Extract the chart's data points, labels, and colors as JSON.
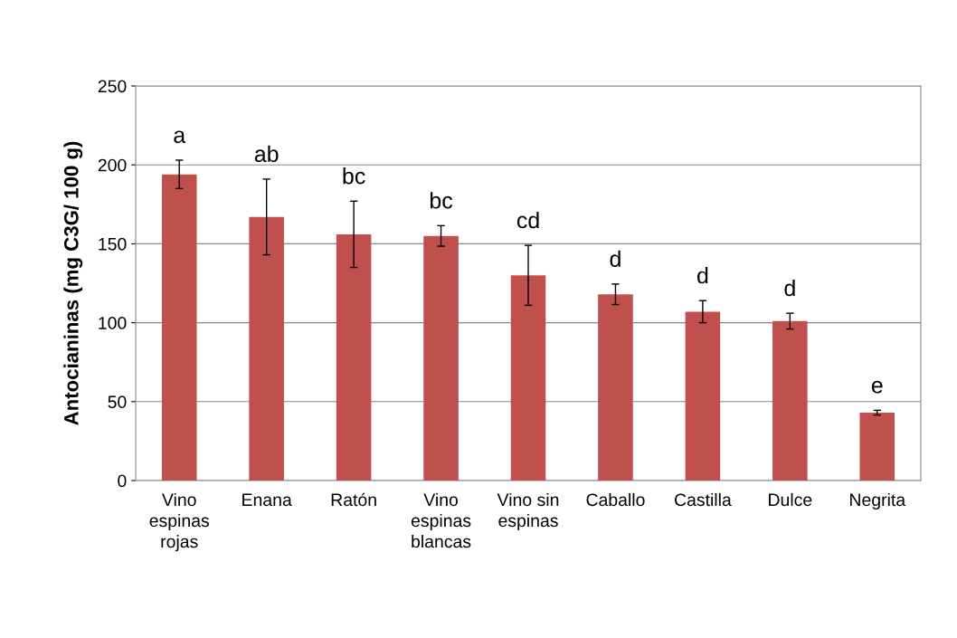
{
  "chart_data": {
    "type": "bar",
    "ylabel": "Antocianinas (mg C3G/ 100 g)",
    "categories": [
      "Vino\nespinas\nrojas",
      "Enana",
      "Ratón",
      "Vino\nespinas\nblancas",
      "Vino sin\nespinas",
      "Caballo",
      "Castilla",
      "Dulce",
      "Negrita"
    ],
    "values": [
      194,
      167,
      156,
      155,
      130,
      118,
      107,
      101,
      43
    ],
    "errors": [
      9,
      24,
      21,
      6.5,
      19,
      6.5,
      7,
      5,
      1.5
    ],
    "color": "#c0504d",
    "ylim": [
      0,
      250
    ],
    "yticks": [
      0,
      50,
      100,
      150,
      200,
      250
    ],
    "grid": "y",
    "annotations": [
      "a",
      "ab",
      "bc",
      "bc",
      "cd",
      "d",
      "d",
      "d",
      "e"
    ]
  }
}
